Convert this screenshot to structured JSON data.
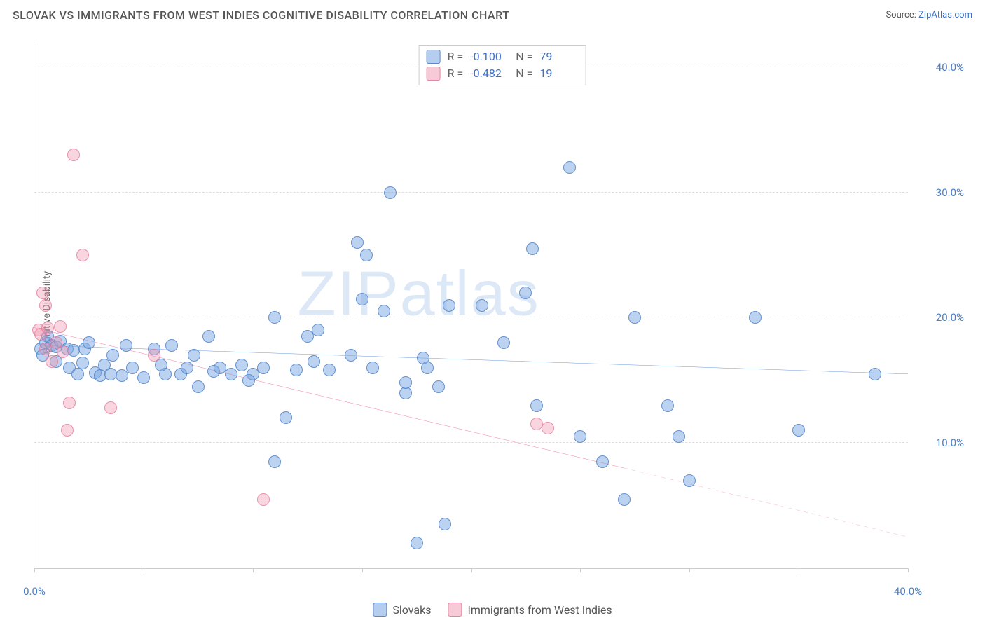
{
  "title": "SLOVAK VS IMMIGRANTS FROM WEST INDIES COGNITIVE DISABILITY CORRELATION CHART",
  "source_label": "Source:",
  "source_name": "ZipAtlas.com",
  "ylabel": "Cognitive Disability",
  "watermark": {
    "bold": "ZIP",
    "rest": "atlas"
  },
  "chart": {
    "type": "scatter",
    "background_color": "#ffffff",
    "grid_color": "#dddddd",
    "axis_color": "#cccccc",
    "xlim": [
      0,
      40
    ],
    "ylim": [
      0,
      42
    ],
    "xtick_positions": [
      0,
      5,
      10,
      15,
      20,
      25,
      30,
      35,
      40
    ],
    "xtick_labels_shown": {
      "0": "0.0%",
      "40": "40.0%"
    },
    "ytick_positions": [
      10,
      20,
      30,
      40
    ],
    "ytick_labels": [
      "10.0%",
      "20.0%",
      "30.0%",
      "40.0%"
    ],
    "label_color": "#4a7ec9",
    "label_fontsize": 15,
    "series": [
      {
        "key": "slovaks",
        "name": "Slovaks",
        "color_fill": "rgba(120,165,225,0.5)",
        "color_stroke": "rgba(80,130,200,0.8)",
        "marker_radius_px": 9,
        "R": "-0.100",
        "N": "79",
        "trend": {
          "x1": 0,
          "y1": 17.8,
          "x2": 40,
          "y2": 15.5,
          "color": "#2e6fd1",
          "width": 2.5,
          "dash": null
        },
        "points": [
          [
            0.3,
            17.5
          ],
          [
            0.4,
            17.0
          ],
          [
            0.5,
            18.0
          ],
          [
            0.6,
            18.5
          ],
          [
            0.8,
            17.8
          ],
          [
            1.0,
            16.5
          ],
          [
            1.0,
            17.7
          ],
          [
            1.2,
            18.1
          ],
          [
            1.5,
            17.5
          ],
          [
            1.6,
            16.0
          ],
          [
            1.8,
            17.4
          ],
          [
            2.0,
            15.5
          ],
          [
            2.2,
            16.4
          ],
          [
            2.3,
            17.5
          ],
          [
            2.5,
            18.0
          ],
          [
            2.8,
            15.6
          ],
          [
            3.0,
            15.4
          ],
          [
            3.2,
            16.2
          ],
          [
            3.5,
            15.5
          ],
          [
            3.6,
            17.0
          ],
          [
            4.0,
            15.4
          ],
          [
            4.2,
            17.8
          ],
          [
            4.5,
            16.0
          ],
          [
            5.0,
            15.2
          ],
          [
            5.5,
            17.5
          ],
          [
            6.0,
            15.5
          ],
          [
            6.3,
            17.8
          ],
          [
            6.7,
            15.5
          ],
          [
            7.0,
            16.0
          ],
          [
            7.3,
            17.0
          ],
          [
            7.5,
            14.5
          ],
          [
            8.0,
            18.5
          ],
          [
            8.2,
            15.7
          ],
          [
            8.5,
            16.0
          ],
          [
            9.0,
            15.5
          ],
          [
            9.5,
            16.2
          ],
          [
            10.0,
            15.5
          ],
          [
            10.5,
            16.0
          ],
          [
            11.0,
            20.0
          ],
          [
            11.5,
            12.0
          ],
          [
            11.0,
            8.5
          ],
          [
            12.0,
            15.8
          ],
          [
            12.5,
            18.5
          ],
          [
            13.0,
            19.0
          ],
          [
            13.5,
            15.8
          ],
          [
            14.5,
            17.0
          ],
          [
            14.8,
            26.0
          ],
          [
            15.0,
            21.5
          ],
          [
            15.2,
            25.0
          ],
          [
            15.5,
            16.0
          ],
          [
            16.0,
            20.5
          ],
          [
            16.3,
            30.0
          ],
          [
            17.0,
            14.0
          ],
          [
            17.5,
            2.0
          ],
          [
            17.8,
            16.8
          ],
          [
            18.0,
            16.0
          ],
          [
            18.5,
            14.5
          ],
          [
            18.8,
            3.5
          ],
          [
            19.0,
            21.0
          ],
          [
            20.5,
            21.0
          ],
          [
            21.5,
            18.0
          ],
          [
            22.5,
            22.0
          ],
          [
            22.8,
            25.5
          ],
          [
            23.0,
            13.0
          ],
          [
            24.5,
            32.0
          ],
          [
            25.0,
            10.5
          ],
          [
            26.0,
            8.5
          ],
          [
            27.0,
            5.5
          ],
          [
            27.5,
            20.0
          ],
          [
            29.0,
            13.0
          ],
          [
            29.5,
            10.5
          ],
          [
            30.0,
            7.0
          ],
          [
            33.0,
            20.0
          ],
          [
            35.0,
            11.0
          ],
          [
            38.5,
            15.5
          ],
          [
            17.0,
            14.8
          ],
          [
            12.8,
            16.5
          ],
          [
            5.8,
            16.2
          ],
          [
            9.8,
            15.0
          ]
        ]
      },
      {
        "key": "west_indies",
        "name": "Immigrants from West Indies",
        "color_fill": "rgba(240,150,175,0.4)",
        "color_stroke": "rgba(225,115,150,0.7)",
        "marker_radius_px": 9,
        "R": "-0.482",
        "N": "19",
        "trend": {
          "x1": 0,
          "y1": 19.2,
          "x2": 27,
          "y2": 8.0,
          "color": "#e94b7b",
          "width": 2.5,
          "extend": {
            "x2": 40,
            "y2": 2.5,
            "dash": "6,5"
          }
        },
        "points": [
          [
            0.2,
            19.0
          ],
          [
            0.3,
            18.7
          ],
          [
            0.4,
            22.0
          ],
          [
            0.5,
            21.0
          ],
          [
            0.5,
            17.5
          ],
          [
            0.6,
            19.2
          ],
          [
            0.8,
            16.5
          ],
          [
            1.0,
            18.0
          ],
          [
            1.2,
            19.3
          ],
          [
            1.3,
            17.3
          ],
          [
            1.5,
            11.0
          ],
          [
            1.6,
            13.2
          ],
          [
            1.8,
            33.0
          ],
          [
            2.2,
            25.0
          ],
          [
            3.5,
            12.8
          ],
          [
            5.5,
            17.0
          ],
          [
            10.5,
            5.5
          ],
          [
            23.0,
            11.5
          ],
          [
            23.5,
            11.2
          ]
        ]
      }
    ]
  },
  "legend_top_labels": {
    "R": "R =",
    "N": "N ="
  },
  "legend_bottom": [
    {
      "swatch": "blue",
      "label": "Slovaks"
    },
    {
      "swatch": "pink",
      "label": "Immigrants from West Indies"
    }
  ]
}
